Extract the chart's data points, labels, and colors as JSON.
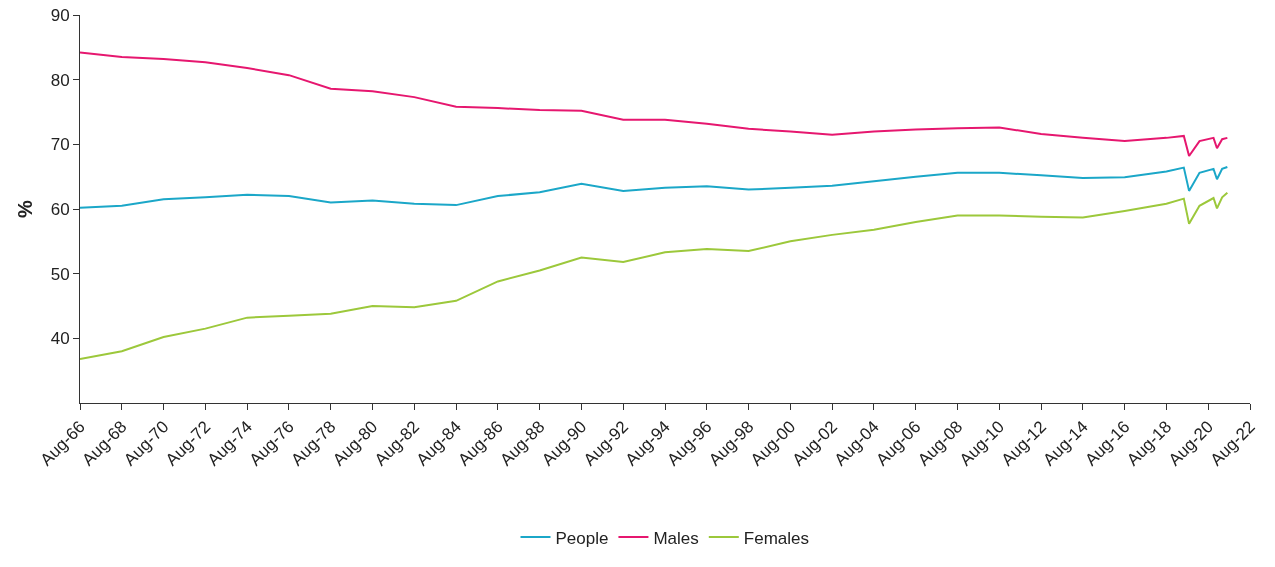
{
  "chart_data": {
    "type": "line",
    "ylabel": "%",
    "ylim": [
      30,
      90
    ],
    "yticks": [
      40,
      50,
      60,
      70,
      80,
      90
    ],
    "xlim": [
      "1966-08",
      "2022-08"
    ],
    "xticks": [
      {
        "value": "1966-08",
        "label": "Aug-66"
      },
      {
        "value": "1968-08",
        "label": "Aug-68"
      },
      {
        "value": "1970-08",
        "label": "Aug-70"
      },
      {
        "value": "1972-08",
        "label": "Aug-72"
      },
      {
        "value": "1974-08",
        "label": "Aug-74"
      },
      {
        "value": "1976-08",
        "label": "Aug-76"
      },
      {
        "value": "1978-08",
        "label": "Aug-78"
      },
      {
        "value": "1980-08",
        "label": "Aug-80"
      },
      {
        "value": "1982-08",
        "label": "Aug-82"
      },
      {
        "value": "1984-08",
        "label": "Aug-84"
      },
      {
        "value": "1986-08",
        "label": "Aug-86"
      },
      {
        "value": "1988-08",
        "label": "Aug-88"
      },
      {
        "value": "1990-08",
        "label": "Aug-90"
      },
      {
        "value": "1992-08",
        "label": "Aug-92"
      },
      {
        "value": "1994-08",
        "label": "Aug-94"
      },
      {
        "value": "1996-08",
        "label": "Aug-96"
      },
      {
        "value": "1998-08",
        "label": "Aug-98"
      },
      {
        "value": "2000-08",
        "label": "Aug-00"
      },
      {
        "value": "2002-08",
        "label": "Aug-02"
      },
      {
        "value": "2004-08",
        "label": "Aug-04"
      },
      {
        "value": "2006-08",
        "label": "Aug-06"
      },
      {
        "value": "2008-08",
        "label": "Aug-08"
      },
      {
        "value": "2010-08",
        "label": "Aug-10"
      },
      {
        "value": "2012-08",
        "label": "Aug-12"
      },
      {
        "value": "2014-08",
        "label": "Aug-14"
      },
      {
        "value": "2016-08",
        "label": "Aug-16"
      },
      {
        "value": "2018-08",
        "label": "Aug-18"
      },
      {
        "value": "2020-08",
        "label": "Aug-20"
      },
      {
        "value": "2022-08",
        "label": "Aug-22"
      }
    ],
    "x": [
      "1966-08",
      "1968-08",
      "1970-08",
      "1972-08",
      "1974-08",
      "1976-08",
      "1978-08",
      "1980-08",
      "1982-08",
      "1984-08",
      "1986-08",
      "1988-08",
      "1990-08",
      "1992-08",
      "1994-08",
      "1996-08",
      "1998-08",
      "2000-08",
      "2002-08",
      "2004-08",
      "2006-08",
      "2008-08",
      "2010-08",
      "2012-08",
      "2014-08",
      "2016-08",
      "2018-08",
      "2019-06",
      "2019-09",
      "2020-03",
      "2020-11",
      "2021-01",
      "2021-04",
      "2021-07"
    ],
    "series": [
      {
        "name": "People",
        "color": "#1ba7c8",
        "values": [
          60.2,
          60.5,
          61.5,
          61.8,
          62.2,
          62.0,
          61.0,
          61.3,
          60.8,
          60.6,
          62.0,
          62.6,
          63.9,
          62.8,
          63.3,
          63.5,
          63.0,
          63.3,
          63.6,
          64.3,
          65.0,
          65.6,
          65.6,
          65.2,
          64.8,
          64.9,
          65.8,
          66.4,
          62.8,
          65.6,
          66.2,
          64.6,
          66.2,
          66.5
        ]
      },
      {
        "name": "Males",
        "color": "#e6176f",
        "values": [
          84.2,
          83.5,
          83.2,
          82.7,
          81.8,
          80.7,
          78.6,
          78.2,
          77.3,
          75.8,
          75.6,
          75.3,
          75.2,
          73.8,
          73.8,
          73.2,
          72.4,
          72.0,
          71.5,
          72.0,
          72.3,
          72.5,
          72.6,
          71.6,
          71.0,
          70.5,
          71.0,
          71.3,
          68.2,
          70.5,
          71.0,
          69.4,
          70.8,
          71.0
        ]
      },
      {
        "name": "Females",
        "color": "#9cc83b",
        "values": [
          36.8,
          38.0,
          40.2,
          41.5,
          43.2,
          43.5,
          43.8,
          45.0,
          44.8,
          45.8,
          48.8,
          50.5,
          52.5,
          51.8,
          53.3,
          53.8,
          53.5,
          55.0,
          56.0,
          56.8,
          58.0,
          59.0,
          59.0,
          58.8,
          58.7,
          59.7,
          60.8,
          61.6,
          57.7,
          60.5,
          61.7,
          60.1,
          61.8,
          62.5
        ]
      }
    ],
    "legend": "bottom",
    "grid": false,
    "line_style": "solid",
    "marker": "none"
  }
}
